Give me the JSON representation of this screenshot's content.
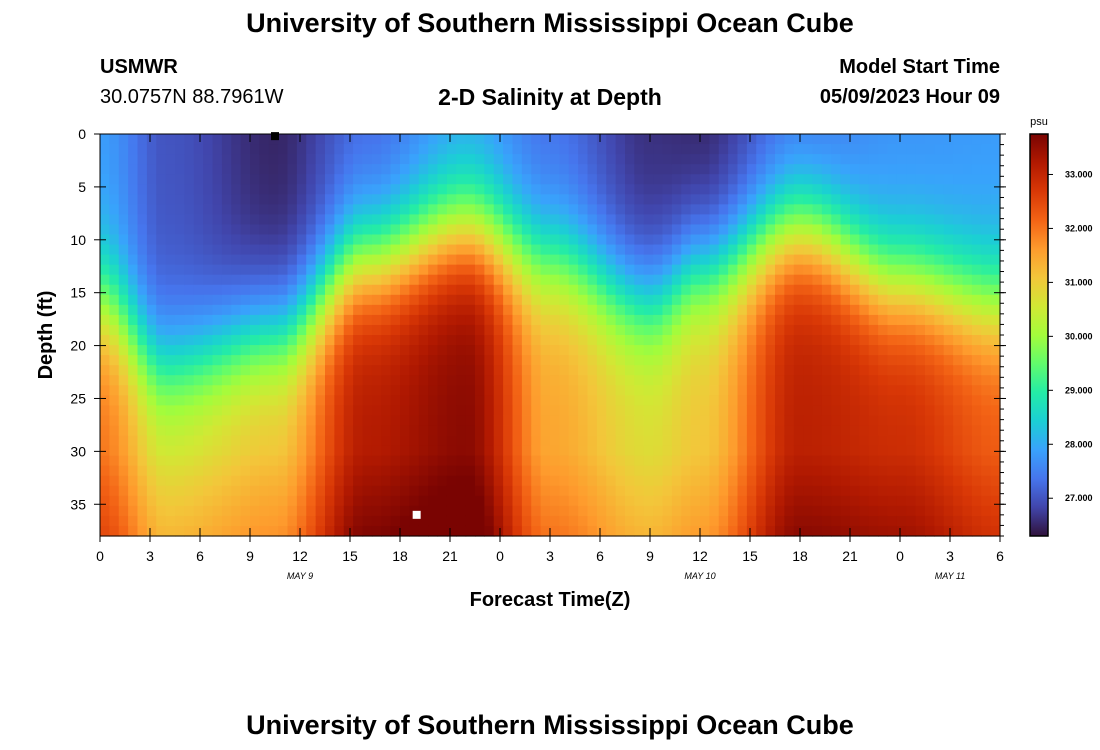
{
  "page": {
    "title_top": "University of Southern Mississippi Ocean Cube",
    "title_bottom": "University of Southern Mississippi Ocean Cube",
    "station": "USMWR",
    "coordinates": "30.0757N  88.7961W",
    "model_start_label": "Model Start Time",
    "model_start_value": "05/09/2023 Hour 09"
  },
  "chart_data": {
    "type": "heatmap",
    "title": "2-D Salinity at Depth",
    "xlabel": "Forecast Time(Z)",
    "ylabel": "Depth (ft)",
    "x_hours_range": [
      0,
      54
    ],
    "x_tick_labels": [
      "0",
      "3",
      "6",
      "9",
      "12",
      "15",
      "18",
      "21",
      "0",
      "3",
      "6",
      "9",
      "12",
      "15",
      "18",
      "21",
      "0",
      "3",
      "6"
    ],
    "day_labels": [
      {
        "label": "MAY 9",
        "hour": 12
      },
      {
        "label": "MAY 10",
        "hour": 36
      },
      {
        "label": "MAY 11",
        "hour": 51
      }
    ],
    "y_range": [
      0,
      38
    ],
    "y_ticks": [
      0,
      5,
      10,
      15,
      20,
      25,
      30,
      35
    ],
    "colorbar": {
      "unit": "psu",
      "range": [
        26.3,
        33.75
      ],
      "ticks": [
        "27.000",
        "28.000",
        "29.000",
        "30.000",
        "31.000",
        "32.000",
        "33.000"
      ],
      "colors": [
        "#30123b",
        "#4145ab",
        "#4675ed",
        "#39a2fc",
        "#1bcfd4",
        "#24eca6",
        "#61fc6c",
        "#a4fc3b",
        "#d1e834",
        "#f3c63a",
        "#fe9b2d",
        "#f36315",
        "#d93806",
        "#b11901",
        "#7a0402"
      ]
    },
    "surface_fields": {
      "x_hours": [
        0,
        4,
        10.5,
        16,
        22,
        27,
        33,
        36,
        42,
        48,
        54
      ],
      "halocline_depth_ft": [
        16,
        22,
        19,
        12,
        9,
        12,
        16,
        13,
        9,
        14,
        16
      ],
      "deep_salinity": [
        32.0,
        30.8,
        31.2,
        33.2,
        33.6,
        31.5,
        30.8,
        31.1,
        33.1,
        32.9,
        32.3
      ],
      "surface_salinity": [
        27.8,
        27.0,
        26.5,
        27.2,
        27.8,
        27.3,
        26.6,
        26.5,
        27.3,
        27.7,
        27.8
      ]
    },
    "markers": [
      {
        "hour": 10.5,
        "depth": 0.2,
        "color": "#000000"
      },
      {
        "hour": 19,
        "depth": 36,
        "color": "#ffffff"
      }
    ]
  }
}
